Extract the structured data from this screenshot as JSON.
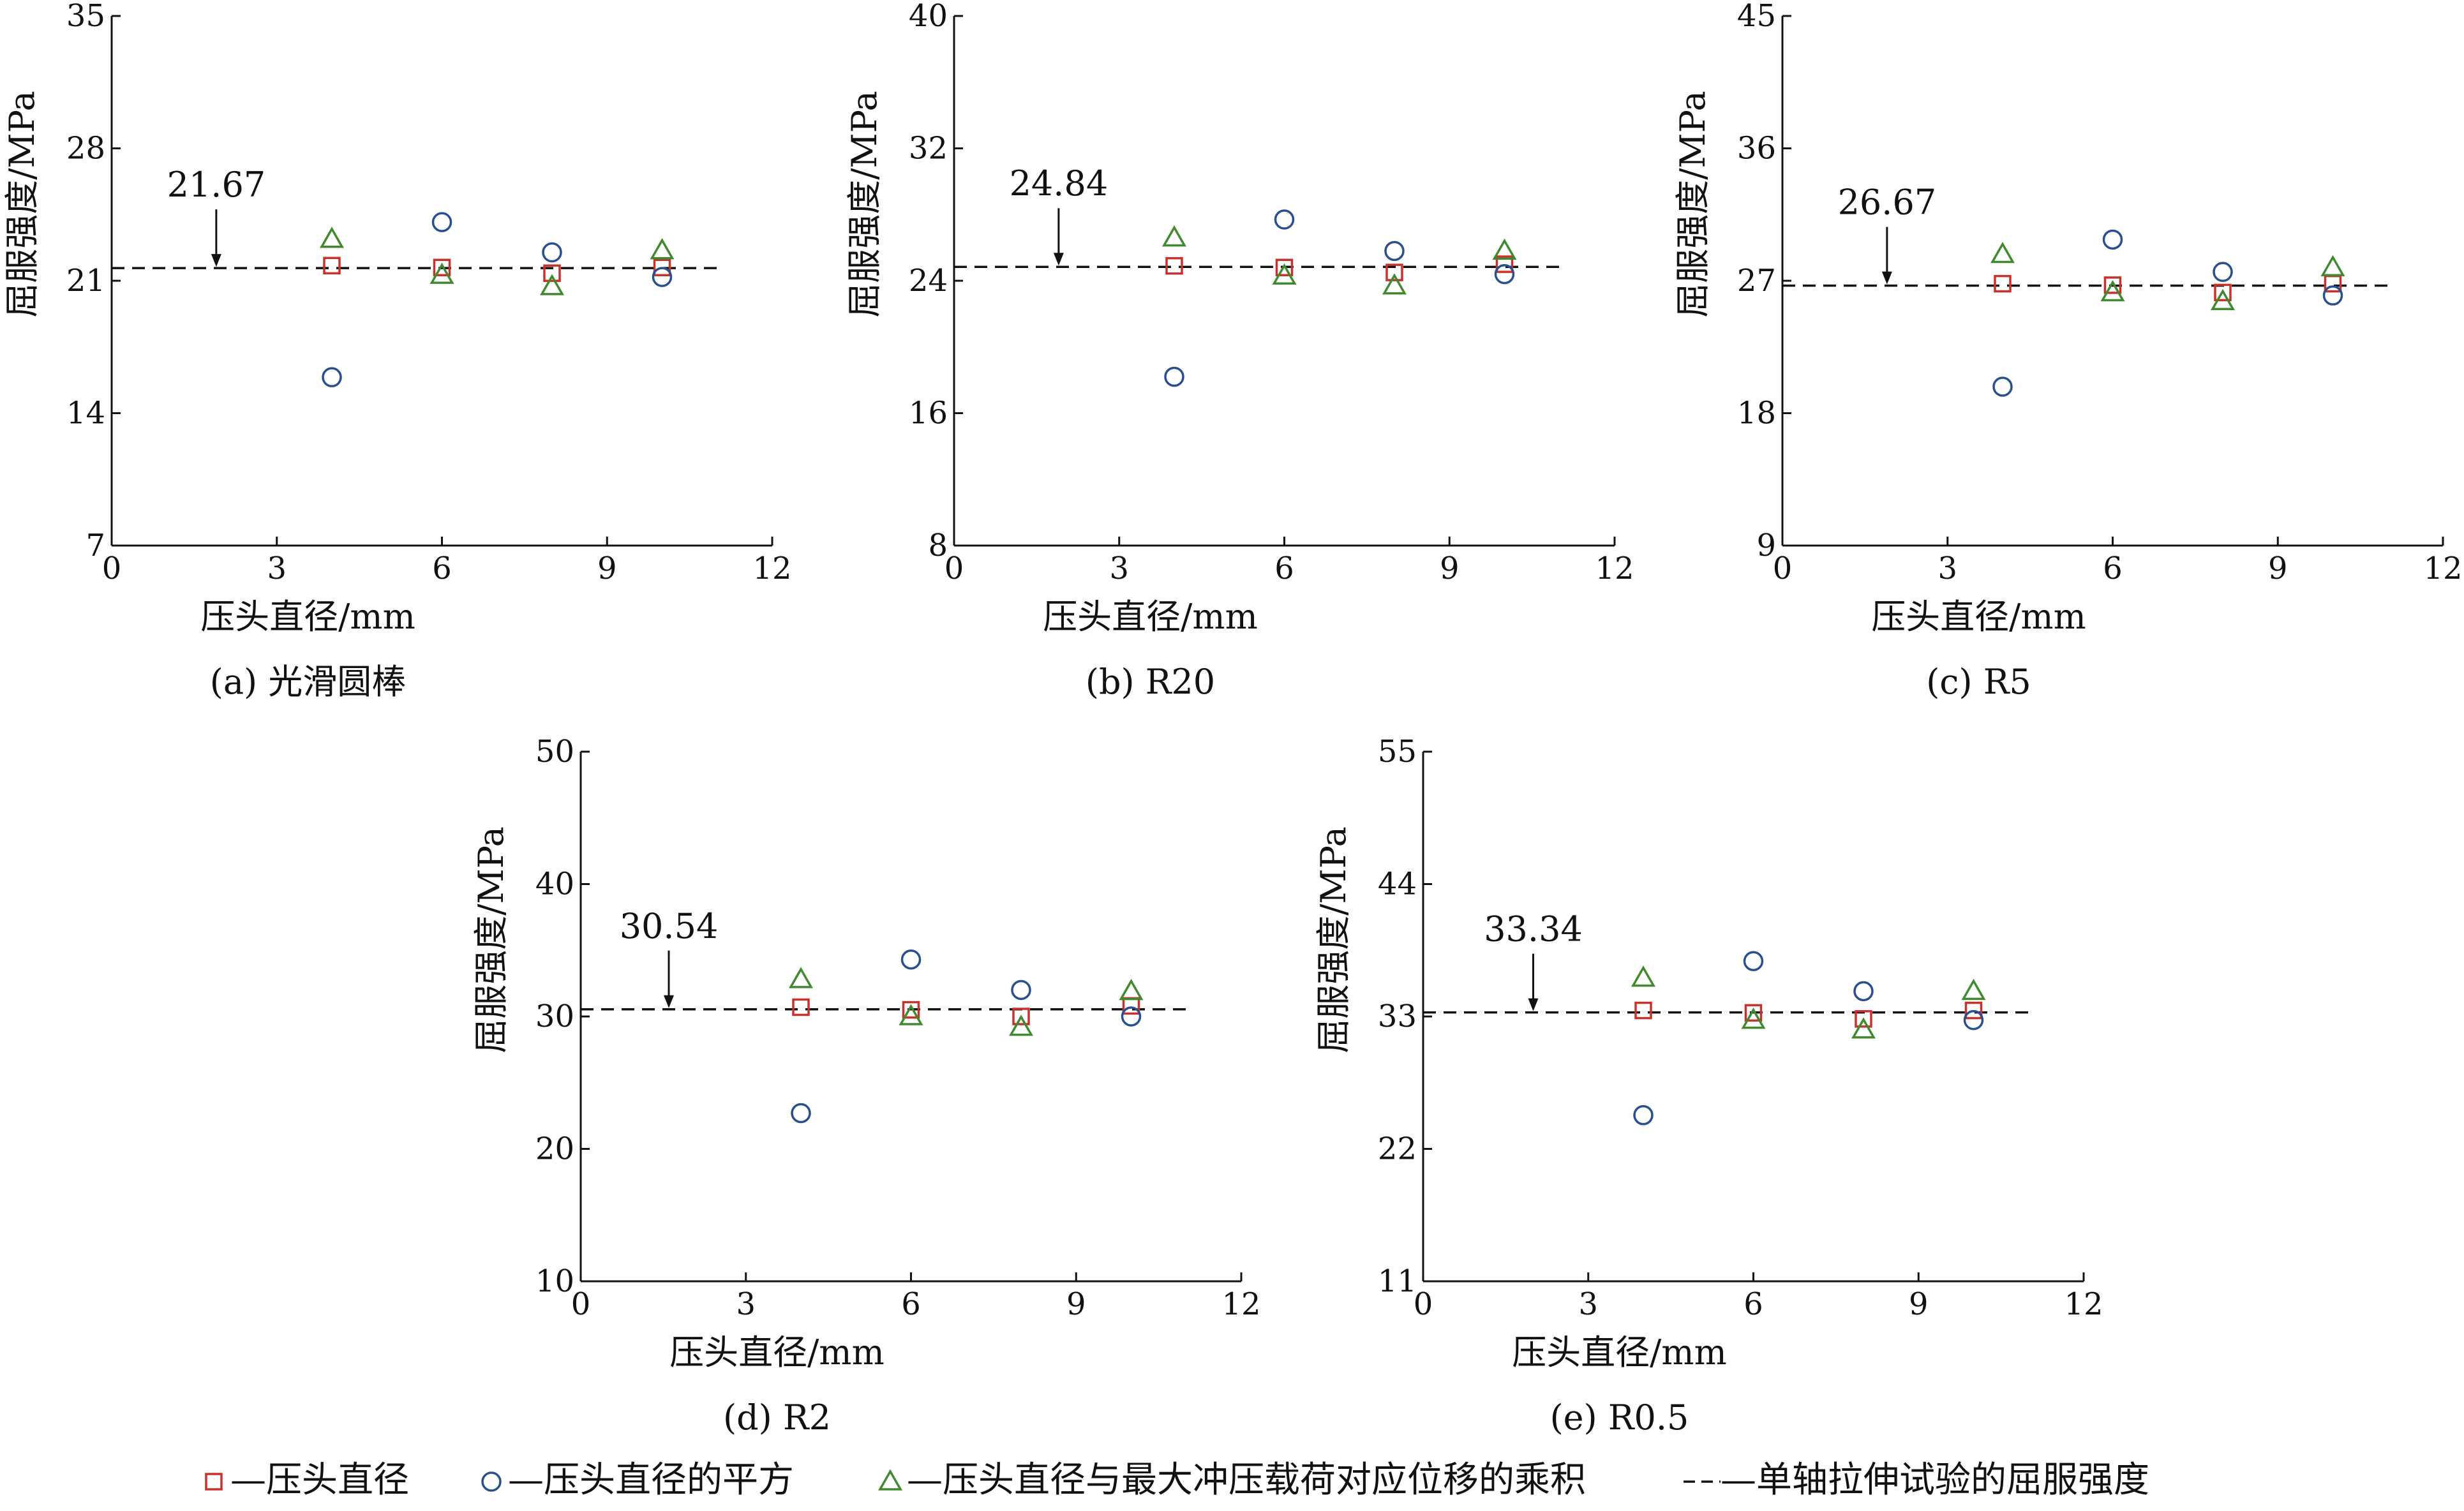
{
  "colors": {
    "square": "#c8322a",
    "circle": "#2a4f8f",
    "triangle": "#3f8a2e",
    "dashed": "#111111",
    "axis": "#111111"
  },
  "legend": {
    "items": [
      {
        "marker": "square",
        "label": "—压头直径"
      },
      {
        "marker": "circle",
        "label": "—压头直径的平方"
      },
      {
        "marker": "triangle",
        "label": "—压头直径与最大冲压载荷对应位移的乘积"
      },
      {
        "marker": "dashed",
        "label": "—单轴拉伸试验的屈服强度"
      }
    ]
  },
  "chart_data": [
    {
      "type": "scatter",
      "caption": "(a) 光滑圆棒",
      "xlabel": "压头直径/mm",
      "ylabel": "屈服强度/MPa",
      "xlim": [
        0,
        12
      ],
      "xticks": [
        0,
        3,
        6,
        9,
        12
      ],
      "ylim": [
        7,
        35
      ],
      "yticks": [
        7,
        14,
        21,
        28,
        35
      ],
      "reference": {
        "value": 21.67,
        "label": "21.67",
        "x_arrow": 1.9
      },
      "series": [
        {
          "marker": "square",
          "x": [
            4,
            6,
            8,
            10
          ],
          "y": [
            21.8,
            21.7,
            21.4,
            21.7
          ]
        },
        {
          "marker": "circle",
          "x": [
            4,
            6,
            8,
            10
          ],
          "y": [
            15.9,
            24.1,
            22.5,
            21.2
          ]
        },
        {
          "marker": "triangle",
          "x": [
            4,
            6,
            8,
            10
          ],
          "y": [
            23.2,
            21.3,
            20.7,
            22.6
          ]
        }
      ]
    },
    {
      "type": "scatter",
      "caption": "(b) R20",
      "xlabel": "压头直径/mm",
      "ylabel": "屈服强度/MPa",
      "xlim": [
        0,
        12
      ],
      "xticks": [
        0,
        3,
        6,
        9,
        12
      ],
      "ylim": [
        8,
        40
      ],
      "yticks": [
        8,
        16,
        24,
        32,
        40
      ],
      "reference": {
        "value": 24.84,
        "label": "24.84",
        "x_arrow": 1.9
      },
      "series": [
        {
          "marker": "square",
          "x": [
            4,
            6,
            8,
            10
          ],
          "y": [
            24.9,
            24.8,
            24.5,
            25.0
          ]
        },
        {
          "marker": "circle",
          "x": [
            4,
            6,
            8,
            10
          ],
          "y": [
            18.2,
            27.7,
            25.8,
            24.4
          ]
        },
        {
          "marker": "triangle",
          "x": [
            4,
            6,
            8,
            10
          ],
          "y": [
            26.6,
            24.3,
            23.7,
            25.8
          ]
        }
      ]
    },
    {
      "type": "scatter",
      "caption": "(c) R5",
      "xlabel": "压头直径/mm",
      "ylabel": "屈服强度/MPa",
      "xlim": [
        0,
        12
      ],
      "xticks": [
        0,
        3,
        6,
        9,
        12
      ],
      "ylim": [
        9,
        45
      ],
      "yticks": [
        9,
        18,
        27,
        36,
        45
      ],
      "reference": {
        "value": 26.67,
        "label": "26.67",
        "x_arrow": 1.9
      },
      "series": [
        {
          "marker": "square",
          "x": [
            4,
            6,
            8,
            10
          ],
          "y": [
            26.8,
            26.7,
            26.2,
            26.8
          ]
        },
        {
          "marker": "circle",
          "x": [
            4,
            6,
            8,
            10
          ],
          "y": [
            19.8,
            29.8,
            27.6,
            26.0
          ]
        },
        {
          "marker": "triangle",
          "x": [
            4,
            6,
            8,
            10
          ],
          "y": [
            28.8,
            26.2,
            25.6,
            27.9
          ]
        }
      ]
    },
    {
      "type": "scatter",
      "caption": "(d) R2",
      "xlabel": "压头直径/mm",
      "ylabel": "屈服强度/MPa",
      "xlim": [
        0,
        12
      ],
      "xticks": [
        0,
        3,
        6,
        9,
        12
      ],
      "ylim": [
        10,
        50
      ],
      "yticks": [
        10,
        20,
        30,
        40,
        50
      ],
      "reference": {
        "value": 30.54,
        "label": "30.54",
        "x_arrow": 1.6
      },
      "series": [
        {
          "marker": "square",
          "x": [
            4,
            6,
            8,
            10
          ],
          "y": [
            30.7,
            30.5,
            30.0,
            30.8
          ]
        },
        {
          "marker": "circle",
          "x": [
            4,
            6,
            8,
            10
          ],
          "y": [
            22.7,
            34.3,
            32.0,
            30.0
          ]
        },
        {
          "marker": "triangle",
          "x": [
            4,
            6,
            8,
            10
          ],
          "y": [
            32.8,
            30.0,
            29.2,
            31.9
          ]
        }
      ]
    },
    {
      "type": "scatter",
      "caption": "(e) R0.5",
      "xlabel": "压头直径/mm",
      "ylabel": "屈服强度/MPa",
      "xlim": [
        0,
        12
      ],
      "xticks": [
        0,
        3,
        6,
        9,
        12
      ],
      "ylim": [
        11,
        55
      ],
      "yticks": [
        11,
        22,
        33,
        44,
        55
      ],
      "reference": {
        "value": 33.34,
        "label": "33.34",
        "x_arrow": 2.0
      },
      "series": [
        {
          "marker": "square",
          "x": [
            4,
            6,
            8,
            10
          ],
          "y": [
            33.5,
            33.3,
            32.8,
            33.5
          ]
        },
        {
          "marker": "circle",
          "x": [
            4,
            6,
            8,
            10
          ],
          "y": [
            24.8,
            37.6,
            35.1,
            32.7
          ]
        },
        {
          "marker": "triangle",
          "x": [
            4,
            6,
            8,
            10
          ],
          "y": [
            36.2,
            32.7,
            31.9,
            35.1
          ]
        }
      ]
    }
  ]
}
